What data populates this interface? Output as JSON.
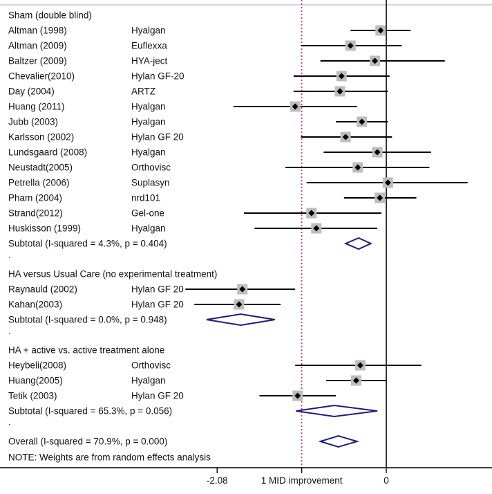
{
  "chart_data": {
    "type": "forest",
    "x_axis": {
      "range": [
        -4.75,
        1.3
      ],
      "ticks": [
        {
          "value": -2.08,
          "label": "-2.08"
        },
        {
          "value": -1.04,
          "label": "1 MID improvement"
        },
        {
          "value": 0,
          "label": "0"
        }
      ],
      "null_line": 0,
      "reference_line": {
        "value": -1.04,
        "color": "#e0245e",
        "style": "dotted"
      }
    },
    "colors": {
      "line": "#000000",
      "marker": "#000000",
      "weight_box": "#bdbdbd",
      "diamond": "#1c1c7a"
    },
    "rows": [
      {
        "kind": "header",
        "text": "Sham (double blind)"
      },
      {
        "kind": "study",
        "study": "Altman (1998)",
        "product": "Hyalgan",
        "est": -0.07,
        "lo": -0.44,
        "hi": 0.3
      },
      {
        "kind": "study",
        "study": "Altman (2009)",
        "product": "Euflexxa",
        "est": -0.44,
        "lo": -1.05,
        "hi": 0.19
      },
      {
        "kind": "study",
        "study": "Baltzer (2009)",
        "product": "HYA-ject",
        "est": -0.14,
        "lo": -0.81,
        "hi": 0.72
      },
      {
        "kind": "study",
        "study": "Chevalier(2010)",
        "product": "Hylan GF-20",
        "est": -0.55,
        "lo": -1.14,
        "hi": 0.04
      },
      {
        "kind": "study",
        "study": "Day (2004)",
        "product": "ARTZ",
        "est": -0.57,
        "lo": -1.14,
        "hi": 0.02
      },
      {
        "kind": "study",
        "study": "Huang (2011)",
        "product": "Hyalgan",
        "est": -1.12,
        "lo": -1.88,
        "hi": -0.36
      },
      {
        "kind": "study",
        "study": "Jubb (2003)",
        "product": "Hyalgan",
        "est": -0.3,
        "lo": -0.62,
        "hi": 0.02
      },
      {
        "kind": "study",
        "study": "Karlsson (2002)",
        "product": "Hylan GF 20",
        "est": -0.5,
        "lo": -1.05,
        "hi": 0.07
      },
      {
        "kind": "study",
        "study": "Lundsgaard (2008)",
        "product": "Hyalgan",
        "est": -0.11,
        "lo": -0.77,
        "hi": 0.55
      },
      {
        "kind": "study",
        "study": "Neustadt(2005)",
        "product": "Orthovisc",
        "est": -0.35,
        "lo": -1.24,
        "hi": 0.53
      },
      {
        "kind": "study",
        "study": "Petrella (2006)",
        "product": "Suplasyn",
        "est": 0.02,
        "lo": -0.98,
        "hi": 1.0
      },
      {
        "kind": "study",
        "study": "Pham (2004)",
        "product": "nrd101",
        "est": -0.08,
        "lo": -0.52,
        "hi": 0.37
      },
      {
        "kind": "study",
        "study": "Strand(2012)",
        "product": "Gel-one",
        "est": -0.92,
        "lo": -1.75,
        "hi": -0.06
      },
      {
        "kind": "study",
        "study": "Huskisson (1999)",
        "product": "Hyalgan",
        "est": -0.86,
        "lo": -1.62,
        "hi": -0.11
      },
      {
        "kind": "subtotal",
        "text": "Subtotal  (I-squared = 4.3%, p = 0.404)",
        "est": -0.34,
        "lo": -0.5,
        "hi": -0.19
      },
      {
        "kind": "dot",
        "text": "."
      },
      {
        "kind": "header",
        "text": "HA versus Usual Care  (no experimental treatment)"
      },
      {
        "kind": "study",
        "study": "Raynauld (2002)",
        "product": "Hylan GF 20",
        "est": -1.77,
        "lo": -2.47,
        "hi": -1.12
      },
      {
        "kind": "study",
        "study": "Kahan(2003)",
        "product": "Hylan GF 20",
        "est": -1.81,
        "lo": -2.36,
        "hi": -1.3
      },
      {
        "kind": "subtotal",
        "text": "Subtotal  (I-squared = 0.0%, p = 0.948)",
        "est": -1.79,
        "lo": -2.21,
        "hi": -1.37
      },
      {
        "kind": "dot",
        "text": "."
      },
      {
        "kind": "header",
        "text": "HA + active vs. active treatment alone"
      },
      {
        "kind": "study",
        "study": "Heybeli(2008)",
        "product": "Orthovisc",
        "est": -0.32,
        "lo": -1.12,
        "hi": 0.43
      },
      {
        "kind": "study",
        "study": "Huang(2005)",
        "product": "Hyalgan",
        "est": -0.37,
        "lo": -0.74,
        "hi": 0.01
      },
      {
        "kind": "study",
        "study": "Tetik (2003)",
        "product": "Hylan GF 20",
        "est": -1.09,
        "lo": -1.56,
        "hi": -0.62
      },
      {
        "kind": "subtotal",
        "text": "Subtotal  (I-squared = 65.3%, p = 0.056)",
        "est": -0.64,
        "lo": -1.11,
        "hi": -0.11
      },
      {
        "kind": "dot",
        "text": "."
      },
      {
        "kind": "overall",
        "text": "Overall  (I-squared = 70.9%, p = 0.000)",
        "est": -0.59,
        "lo": -0.81,
        "hi": -0.36
      },
      {
        "kind": "note",
        "text": "NOTE: Weights are from random effects analysis"
      }
    ]
  }
}
